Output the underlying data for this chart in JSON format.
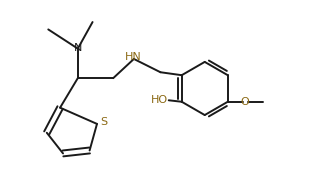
{
  "background_color": "#ffffff",
  "bond_color": "#1a1a1a",
  "heteroatom_color": "#8B6914",
  "line_width": 1.4,
  "figsize": [
    3.15,
    1.74
  ],
  "dpi": 100,
  "xlim": [
    0,
    9.5
  ],
  "ylim": [
    0,
    5.8
  ]
}
